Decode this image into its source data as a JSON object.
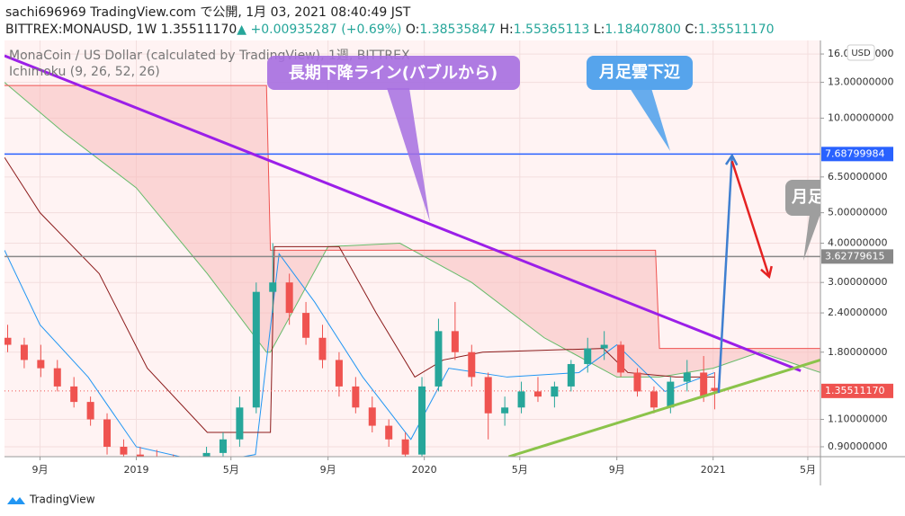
{
  "header": {
    "line1": "sachi696969 TradingView.com で公開, 1月 03, 2021 08:40:49 JST",
    "symbol": "BITTREX:MONAUSD, 1W",
    "price": "1.35511170",
    "change": "▲ +0.00935287 (+0.69%)",
    "ohlc": [
      {
        "label": "O:",
        "value": "1.38535847"
      },
      {
        "label": "H:",
        "value": "1.55365113"
      },
      {
        "label": "L:",
        "value": "1.18407800"
      },
      {
        "label": "C:",
        "value": "1.35511170"
      }
    ]
  },
  "chart_data": {
    "type": "candlestick",
    "legend": [
      "MonaCoin / US Dollar (calculated by TradingView), 1週, BITTREX",
      "Ichimoku (9, 26, 52, 26)"
    ],
    "currency": "USD",
    "log_scale": true,
    "grid": true,
    "up_color": "#26a69a",
    "down_color": "#ef5350",
    "x": [
      "2018-07-22",
      "2018-08-12",
      "2018-09-02",
      "2018-09-23",
      "2018-10-14",
      "2018-11-04",
      "2018-11-25",
      "2018-12-16",
      "2019-01-06",
      "2019-01-27",
      "2019-02-17",
      "2019-03-10",
      "2019-03-31",
      "2019-04-21",
      "2019-05-12",
      "2019-06-02",
      "2019-06-23",
      "2019-07-14",
      "2019-08-04",
      "2019-08-25",
      "2019-09-15",
      "2019-10-06",
      "2019-10-27",
      "2019-11-17",
      "2019-12-08",
      "2019-12-29",
      "2020-01-19",
      "2020-02-09",
      "2020-03-01",
      "2020-03-22",
      "2020-04-12",
      "2020-05-03",
      "2020-05-24",
      "2020-06-14",
      "2020-07-05",
      "2020-07-26",
      "2020-08-16",
      "2020-09-06",
      "2020-09-27",
      "2020-10-18",
      "2020-11-08",
      "2020-11-29",
      "2020-12-20",
      "2021-01-03"
    ],
    "open": [
      2.0,
      1.9,
      1.7,
      1.6,
      1.4,
      1.25,
      1.1,
      0.9,
      0.85,
      0.82,
      0.8,
      0.78,
      0.8,
      0.86,
      0.95,
      1.2,
      2.8,
      3.0,
      2.4,
      2.0,
      1.7,
      1.4,
      1.2,
      1.05,
      0.95,
      0.85,
      1.4,
      2.1,
      1.8,
      1.5,
      1.15,
      1.2,
      1.35,
      1.3,
      1.4,
      1.65,
      1.85,
      1.9,
      1.55,
      1.35,
      1.2,
      1.45,
      1.55,
      1.38535847
    ],
    "high": [
      2.2,
      2.0,
      1.9,
      1.7,
      1.5,
      1.3,
      1.15,
      0.95,
      0.9,
      0.88,
      0.85,
      0.84,
      0.9,
      1.0,
      1.3,
      3.0,
      4.0,
      3.2,
      2.6,
      2.2,
      1.8,
      1.5,
      1.3,
      1.1,
      1.0,
      1.5,
      2.3,
      2.6,
      1.9,
      1.55,
      1.3,
      1.45,
      1.5,
      1.45,
      1.7,
      2.0,
      2.1,
      1.95,
      1.6,
      1.4,
      1.5,
      1.7,
      1.75,
      1.55365113
    ],
    "low": [
      1.8,
      1.6,
      1.5,
      1.35,
      1.2,
      1.05,
      0.85,
      0.8,
      0.78,
      0.75,
      0.72,
      0.74,
      0.76,
      0.82,
      0.9,
      1.15,
      2.4,
      2.2,
      1.9,
      1.6,
      1.3,
      1.15,
      1.0,
      0.9,
      0.8,
      0.82,
      1.35,
      1.7,
      1.4,
      0.95,
      1.05,
      1.15,
      1.25,
      1.2,
      1.35,
      1.55,
      1.7,
      1.5,
      1.3,
      1.15,
      1.15,
      1.35,
      1.25,
      1.184078
    ],
    "close": [
      1.9,
      1.7,
      1.6,
      1.4,
      1.25,
      1.1,
      0.9,
      0.85,
      0.82,
      0.8,
      0.78,
      0.8,
      0.86,
      0.95,
      1.2,
      2.8,
      3.0,
      2.4,
      2.0,
      1.7,
      1.4,
      1.2,
      1.05,
      0.95,
      0.85,
      1.4,
      2.1,
      1.8,
      1.5,
      1.15,
      1.2,
      1.35,
      1.3,
      1.4,
      1.65,
      1.85,
      1.9,
      1.55,
      1.35,
      1.2,
      1.45,
      1.55,
      1.3,
      1.3551117
    ],
    "ichimoku": {
      "x": [
        "2018-07-18",
        "2018-10-01",
        "2019-01-01",
        "2019-04-01",
        "2019-06-15",
        "2019-06-20",
        "2019-09-01",
        "2019-12-01",
        "2020-03-01",
        "2020-06-01",
        "2020-09-01",
        "2020-10-20",
        "2020-10-25",
        "2021-01-01",
        "2021-03-01",
        "2021-05-17"
      ],
      "span_a": [
        13,
        9,
        6,
        3.2,
        1.8,
        1.8,
        3.9,
        4.0,
        3.0,
        2.0,
        1.5,
        1.5,
        1.5,
        1.6,
        1.8,
        1.55
      ],
      "span_b": [
        12.7,
        12.7,
        12.7,
        12.7,
        12.7,
        3.8,
        3.8,
        3.8,
        3.8,
        3.8,
        3.8,
        3.8,
        1.85,
        1.85,
        1.85,
        1.85
      ],
      "color_a": "#66bb6a",
      "color_b": "#ef5350",
      "cloud_color": "#f8bcbc"
    },
    "tenkan": {
      "x": [
        "2018-07-18",
        "2018-09-01",
        "2018-11-01",
        "2019-01-01",
        "2019-04-01",
        "2019-06-01",
        "2019-07-01",
        "2019-08-15",
        "2019-10-15",
        "2019-12-15",
        "2020-02-01",
        "2020-04-15",
        "2020-07-15",
        "2020-09-01",
        "2020-11-01",
        "2021-01-03"
      ],
      "values": [
        3.8,
        2.2,
        1.5,
        0.9,
        0.8,
        0.85,
        3.7,
        2.6,
        1.5,
        0.95,
        1.6,
        1.5,
        1.55,
        1.9,
        1.35,
        1.55
      ],
      "color": "#2196f3"
    },
    "kijun": {
      "x": [
        "2018-07-18",
        "2018-09-01",
        "2018-11-15",
        "2019-01-15",
        "2019-04-01",
        "2019-06-20",
        "2019-06-25",
        "2019-09-15",
        "2019-11-01",
        "2019-12-20",
        "2020-01-25",
        "2020-03-15",
        "2020-08-15",
        "2020-09-15",
        "2020-11-15",
        "2021-01-03"
      ],
      "values": [
        7.5,
        5,
        3.2,
        1.6,
        1.0,
        1.0,
        3.9,
        3.9,
        2.4,
        1.5,
        1.7,
        1.8,
        1.85,
        1.55,
        1.5,
        1.5
      ],
      "color": "#8b1a1a"
    },
    "trend_lines": [
      {
        "from": [
          "2018-07-18",
          15.8
        ],
        "to": [
          "2021-04-22",
          1.57
        ],
        "color": "#9b1fe8",
        "width": 3
      },
      {
        "from": [
          "2020-04-17",
          0.837
        ],
        "to": [
          "2021-05-17",
          1.7
        ],
        "color": "#8bc34a",
        "width": 3
      }
    ],
    "arrows": [
      {
        "from": [
          "2021-01-08",
          1.336
        ],
        "to": [
          "2021-01-25",
          7.6
        ],
        "color": "#3f7fd0"
      },
      {
        "from": [
          "2021-01-25",
          7.3
        ],
        "to": [
          "2021-03-13",
          3.13
        ],
        "color": "#e52222"
      }
    ],
    "hlines": [
      {
        "value": 7.68799984,
        "color": "#2962ff"
      },
      {
        "value": 3.62779615,
        "color": "#888888"
      }
    ],
    "last_price": {
      "value": 1.3551117,
      "label": "1.35511170",
      "color": "#ef5350"
    },
    "annotations": [
      "長期下降ライン(バブルから)",
      "月足雲下辺",
      "月足"
    ],
    "ylim": [
      0.837,
      17.67
    ],
    "yticks": [
      {
        "value": 16,
        "label": "16.00000000"
      },
      {
        "value": 13,
        "label": "13.00000000"
      },
      {
        "value": 10,
        "label": "10.00000000"
      },
      {
        "value": 6.5,
        "label": "6.50000000"
      },
      {
        "value": 5,
        "label": "5.00000000"
      },
      {
        "value": 4,
        "label": "4.00000000"
      },
      {
        "value": 3,
        "label": "3.00000000"
      },
      {
        "value": 2.4,
        "label": "2.40000000"
      },
      {
        "value": 1.8,
        "label": "1.80000000"
      },
      {
        "value": 1.1,
        "label": "1.10000000"
      },
      {
        "value": 0.9,
        "label": "0.90000000"
      }
    ],
    "xlim": [
      "2018-07-18",
      "2021-05-17"
    ],
    "xticks": [
      {
        "value": "2018-09-01",
        "label": "9月"
      },
      {
        "value": "2019-01-01",
        "label": "2019"
      },
      {
        "value": "2019-05-01",
        "label": "5月"
      },
      {
        "value": "2019-09-01",
        "label": "9月"
      },
      {
        "value": "2020-01-01",
        "label": "2020"
      },
      {
        "value": "2020-05-01",
        "label": "5月"
      },
      {
        "value": "2020-09-01",
        "label": "9月"
      },
      {
        "value": "2021-01-01",
        "label": "2021"
      },
      {
        "value": "2021-05-01",
        "label": "5月"
      }
    ]
  },
  "footer": {
    "brand": "TradingView"
  }
}
